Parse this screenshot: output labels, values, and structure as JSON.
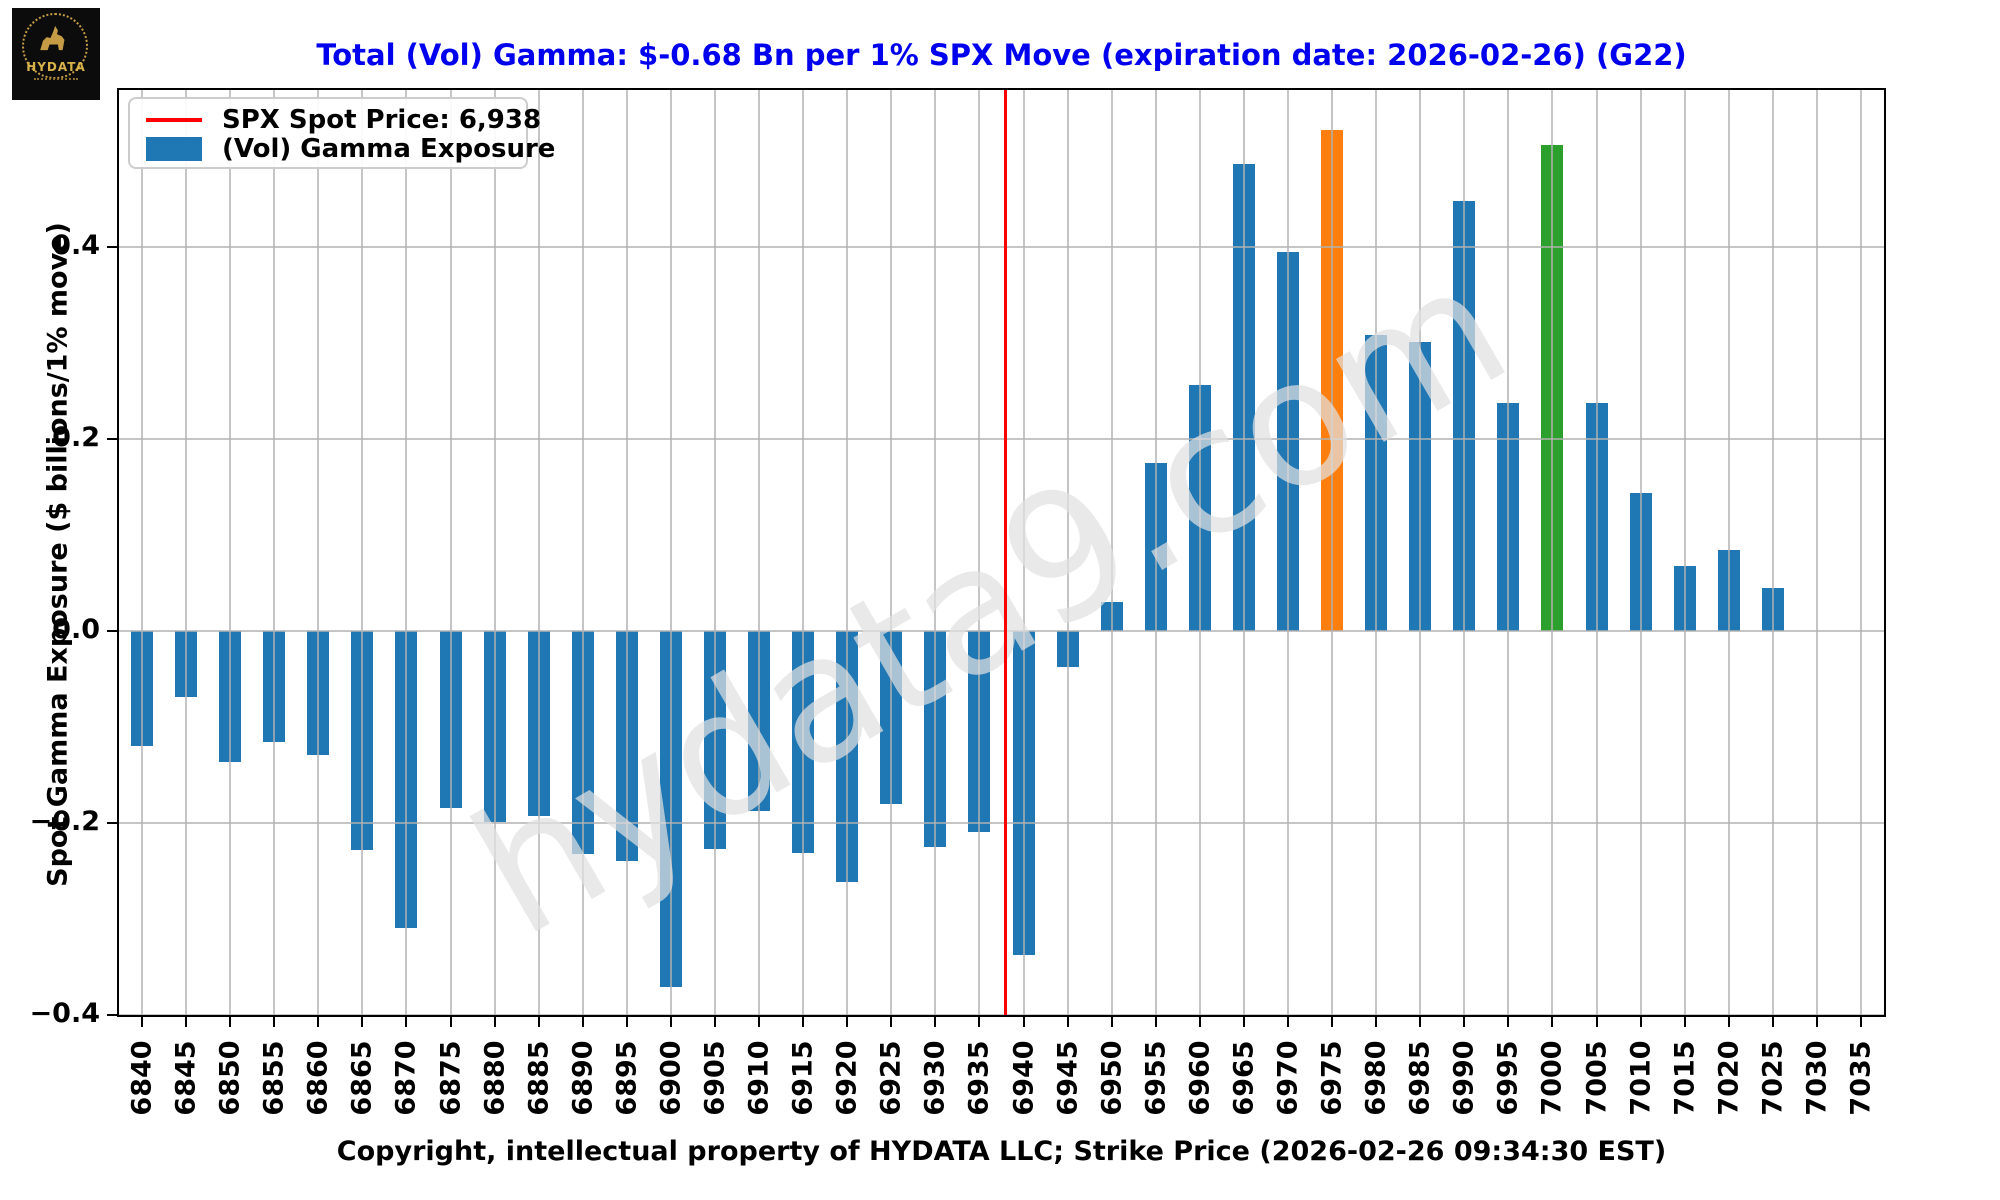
{
  "logo": {
    "brand": "HYDATA"
  },
  "title": "Total (Vol) Gamma: $-0.68 Bn per 1% SPX Move (expiration date: 2026-02-26) (G22)",
  "watermark": "hydata9.com",
  "legend": {
    "spot_label": "SPX Spot Price: 6,938",
    "gamma_label": "(Vol) Gamma Exposure"
  },
  "y_axis": {
    "label": "Spot Gamma Exposure ($ billions/1% move)"
  },
  "x_axis": {
    "label": "Copyright, intellectual property of HYDATA LLC; Strike Price (2026-02-26 09:34:30 EST)"
  },
  "chart_data": {
    "type": "bar",
    "title": "Total (Vol) Gamma: $-0.68 Bn per 1% SPX Move (expiration date: 2026-02-26) (G22)",
    "xlabel": "Copyright, intellectual property of HYDATA LLC; Strike Price (2026-02-26 09:34:30 EST)",
    "ylabel": "Spot Gamma Exposure ($ billions/1% move)",
    "categories": [
      6840,
      6845,
      6850,
      6855,
      6860,
      6865,
      6870,
      6875,
      6880,
      6885,
      6890,
      6895,
      6900,
      6905,
      6910,
      6915,
      6920,
      6925,
      6930,
      6935,
      6940,
      6945,
      6950,
      6955,
      6960,
      6965,
      6970,
      6975,
      6980,
      6985,
      6990,
      6995,
      7000,
      7005,
      7010,
      7015,
      7020,
      7025,
      7030,
      7035
    ],
    "values": [
      -0.12,
      -0.069,
      -0.136,
      -0.116,
      -0.129,
      -0.228,
      -0.309,
      -0.184,
      -0.199,
      -0.193,
      -0.232,
      -0.24,
      -0.371,
      -0.227,
      -0.187,
      -0.231,
      -0.261,
      -0.18,
      -0.225,
      -0.209,
      -0.338,
      -0.037,
      0.03,
      0.175,
      0.256,
      0.486,
      0.395,
      0.522,
      0.308,
      0.301,
      0.448,
      0.237,
      0.506,
      0.237,
      0.144,
      0.068,
      0.084,
      0.045,
      0.0,
      0.0
    ],
    "bar_color": "#1f77b4",
    "highlights": {
      "6975": "#ff7f0e",
      "7000": "#2ca02c"
    },
    "spot_line": {
      "label": "SPX Spot Price: 6,938",
      "value": 6938,
      "color": "#ff0000"
    },
    "yticks": [
      {
        "v": 0.4,
        "label": "0.4"
      },
      {
        "v": 0.2,
        "label": "0.2"
      },
      {
        "v": 0.0,
        "label": "0.0"
      },
      {
        "v": -0.2,
        "label": "−0.2"
      },
      {
        "v": -0.4,
        "label": "−0.4"
      }
    ],
    "ylim": [
      -0.4,
      0.57
    ],
    "grid": true,
    "legend_position": "upper left",
    "title_color": "#0000ee"
  }
}
